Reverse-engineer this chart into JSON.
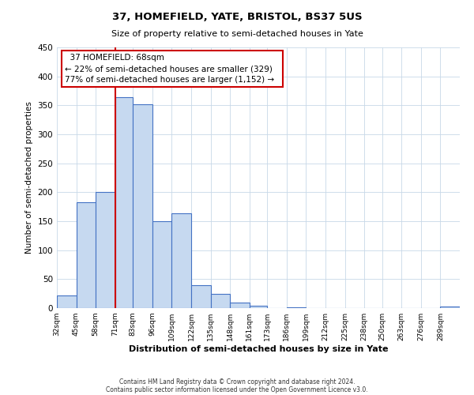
{
  "title": "37, HOMEFIELD, YATE, BRISTOL, BS37 5US",
  "subtitle": "Size of property relative to semi-detached houses in Yate",
  "xlabel": "Distribution of semi-detached houses by size in Yate",
  "ylabel": "Number of semi-detached properties",
  "bar_labels": [
    "32sqm",
    "45sqm",
    "58sqm",
    "71sqm",
    "83sqm",
    "96sqm",
    "109sqm",
    "122sqm",
    "135sqm",
    "148sqm",
    "161sqm",
    "173sqm",
    "186sqm",
    "199sqm",
    "212sqm",
    "225sqm",
    "238sqm",
    "250sqm",
    "263sqm",
    "276sqm",
    "289sqm"
  ],
  "bar_values": [
    22,
    183,
    201,
    364,
    352,
    150,
    163,
    40,
    25,
    9,
    4,
    0,
    2,
    0,
    0,
    0,
    0,
    0,
    0,
    0,
    3
  ],
  "bar_color": "#c6d9f0",
  "bar_edge_color": "#4472c4",
  "property_line_x": 71,
  "property_line_color": "#cc0000",
  "annotation_title": "37 HOMEFIELD: 68sqm",
  "annotation_line1": "← 22% of semi-detached houses are smaller (329)",
  "annotation_line2": "77% of semi-detached houses are larger (1,152) →",
  "annotation_box_color": "#ffffff",
  "annotation_box_edge": "#cc0000",
  "ylim": [
    0,
    450
  ],
  "yticks": [
    0,
    50,
    100,
    150,
    200,
    250,
    300,
    350,
    400,
    450
  ],
  "footer_line1": "Contains HM Land Registry data © Crown copyright and database right 2024.",
  "footer_line2": "Contains public sector information licensed under the Open Government Licence v3.0.",
  "bin_edges": [
    32,
    45,
    58,
    71,
    83,
    96,
    109,
    122,
    135,
    148,
    161,
    173,
    186,
    199,
    212,
    225,
    238,
    250,
    263,
    276,
    289,
    302
  ]
}
